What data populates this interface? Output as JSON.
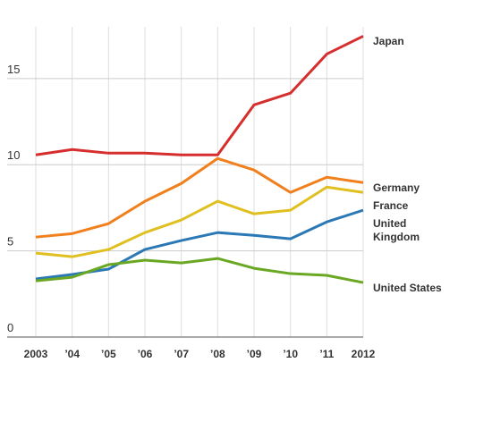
{
  "chart_data": {
    "type": "line",
    "categories": [
      "2003",
      "’04",
      "’05",
      "’06",
      "’07",
      "’08",
      "’09",
      "’10",
      "’11",
      "2012"
    ],
    "series": [
      {
        "name": "Japan",
        "color": "#d62d2d",
        "values": [
          10.57,
          10.88,
          10.67,
          10.67,
          10.57,
          10.57,
          13.47,
          14.15,
          16.42,
          17.46
        ]
      },
      {
        "name": "Germany",
        "color": "#f07f1c",
        "values": [
          5.8,
          6.0,
          6.58,
          7.88,
          8.91,
          10.36,
          9.69,
          8.39,
          9.27,
          8.96
        ]
      },
      {
        "name": "France",
        "color": "#e0c020",
        "values": [
          4.87,
          4.66,
          5.08,
          6.06,
          6.79,
          7.88,
          7.15,
          7.36,
          8.7,
          8.39
        ]
      },
      {
        "name": "United Kingdom",
        "color": "#2a78b5",
        "values": [
          3.37,
          3.63,
          3.94,
          5.08,
          5.6,
          6.06,
          5.9,
          5.7,
          6.68,
          7.36
        ]
      },
      {
        "name": "United States",
        "color": "#6aa823",
        "values": [
          3.26,
          3.47,
          4.2,
          4.46,
          4.3,
          4.56,
          3.99,
          3.68,
          3.58,
          3.16
        ]
      }
    ],
    "ylim": [
      0,
      18
    ],
    "yticks": [
      0,
      5,
      10,
      15
    ],
    "grid": true
  }
}
